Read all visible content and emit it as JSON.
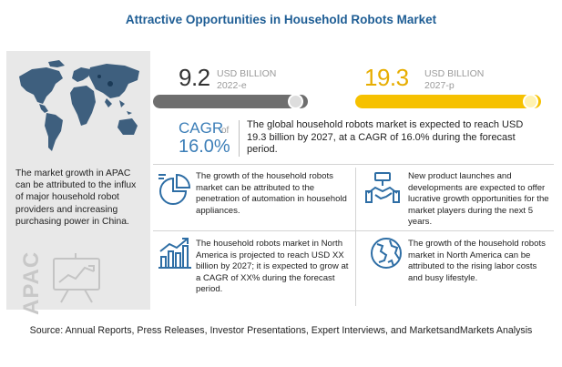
{
  "title": "Attractive Opportunities in Household Robots Market",
  "left_panel": {
    "text": "The market growth in APAC can be attributed to the influx of major household robot providers and increasing purchasing power in China.",
    "region_label": "APAC",
    "icons": [
      "world-map-icon",
      "presentation-chart-icon"
    ]
  },
  "stats": {
    "start": {
      "value": "9.2",
      "unit": "USD BILLION",
      "year": "2022-e"
    },
    "end": {
      "value": "19.3",
      "unit": "USD BILLION",
      "year": "2027-p"
    }
  },
  "cagr": {
    "label": "CAGR",
    "of": "of",
    "value": "16.0%",
    "text": "The global household robots market is expected to reach USD 19.3 billion by 2027, at a CAGR of 16.0% during the forecast period."
  },
  "cells": [
    {
      "icon": "pie-chart-icon",
      "text": "The growth of the household robots market can be attributed to the penetration of automation in household appliances."
    },
    {
      "icon": "handshake-icon",
      "text": "New product launches and developments are expected to offer lucrative growth opportunities for the market players during the next 5 years."
    },
    {
      "icon": "growth-chart-icon",
      "text": "The household robots market in North America is projected to reach USD XX billion by 2027; it is expected to grow at a CAGR of XX% during the forecast period."
    },
    {
      "icon": "globe-icon",
      "text": "The growth of the household robots market in North America can be attributed to the rising labor costs and busy lifestyle."
    }
  ],
  "source": "Source: Annual Reports, Press Releases, Investor Presentations, Expert Interviews, and MarketsandMarkets Analysis",
  "colors": {
    "title": "#1f5e95",
    "accent_blue": "#3d7fb8",
    "gold": "#f6c100",
    "gray_bar": "#6e6e6e",
    "panel": "#e8e8e8"
  }
}
